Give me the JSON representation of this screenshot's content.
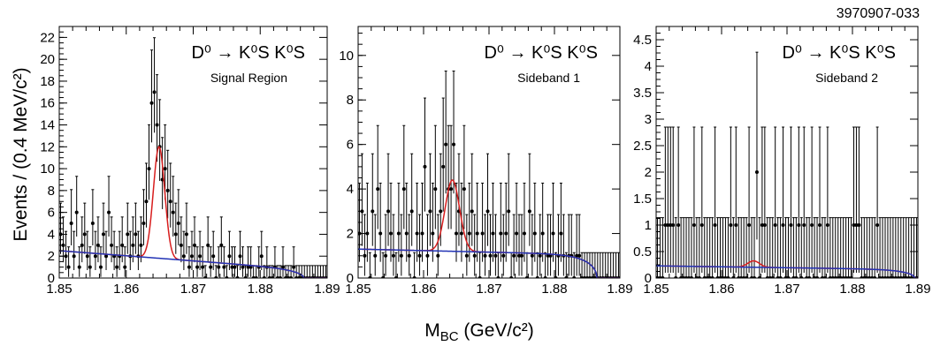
{
  "figure_id": "3970907-033",
  "shared_xlabel": "M_BC (GeV/c²)",
  "shared_ylabel": "Events / (0.4 MeV/c²)",
  "chart_data": [
    {
      "type": "scatter",
      "annotation_title": "D⁰ → K⁰S K⁰S",
      "annotation_subtitle": "Signal Region",
      "xlim": [
        1.85,
        1.89
      ],
      "ylim": [
        0,
        23
      ],
      "xticks": [
        1.85,
        1.86,
        1.87,
        1.88,
        1.89
      ],
      "yticks": [
        0,
        2,
        4,
        6,
        8,
        10,
        12,
        14,
        16,
        18,
        20,
        22
      ],
      "x": [
        1.8502,
        1.8506,
        1.851,
        1.8514,
        1.8518,
        1.8522,
        1.8526,
        1.853,
        1.8534,
        1.8538,
        1.8542,
        1.8546,
        1.855,
        1.8554,
        1.8558,
        1.8562,
        1.8566,
        1.857,
        1.8574,
        1.8578,
        1.8582,
        1.8586,
        1.859,
        1.8594,
        1.8598,
        1.8602,
        1.8606,
        1.861,
        1.8614,
        1.8618,
        1.8622,
        1.8626,
        1.863,
        1.8634,
        1.8638,
        1.8642,
        1.8646,
        1.865,
        1.8654,
        1.8658,
        1.8662,
        1.8666,
        1.867,
        1.8674,
        1.8678,
        1.8682,
        1.8686,
        1.869,
        1.8694,
        1.8698,
        1.8702,
        1.8706,
        1.871,
        1.8714,
        1.8718,
        1.8722,
        1.8726,
        1.873,
        1.8734,
        1.8738,
        1.8742,
        1.8746,
        1.875,
        1.8754,
        1.8758,
        1.8762,
        1.8766,
        1.877,
        1.8774,
        1.8778,
        1.8782,
        1.8786,
        1.879,
        1.8794,
        1.8798,
        1.8802,
        1.8806,
        1.881,
        1.8814,
        1.8818,
        1.8822,
        1.8826,
        1.883,
        1.8834,
        1.8838,
        1.8842,
        1.8846,
        1.885,
        1.8854,
        1.8858,
        1.8862,
        1.8866,
        1.887,
        1.8874,
        1.8878,
        1.8882,
        1.8886,
        1.889,
        1.8894,
        1.8898
      ],
      "y": [
        4,
        3,
        2,
        1,
        5,
        2,
        6,
        1,
        3,
        4,
        2,
        1,
        5,
        2,
        3,
        1,
        4,
        2,
        6,
        3,
        2,
        1,
        2,
        3,
        1,
        4,
        2,
        3,
        4,
        2,
        3,
        5,
        7,
        10,
        16,
        17,
        14,
        12,
        9,
        10,
        8,
        7,
        6,
        4,
        5,
        3,
        2,
        4,
        1,
        2,
        3,
        1,
        2,
        1,
        0,
        3,
        1,
        2,
        0,
        1,
        3,
        1,
        0,
        2,
        1,
        1,
        0,
        2,
        1,
        0,
        1,
        1,
        0,
        0,
        1,
        2,
        0,
        1,
        0,
        0,
        1,
        0,
        0,
        1,
        0,
        0,
        0,
        1,
        0,
        0,
        0,
        0,
        0,
        0,
        0,
        0,
        0,
        0,
        0,
        0
      ],
      "signal_fit": {
        "mean": 1.8649,
        "sigma": 0.00085,
        "amplitude": 10.2
      },
      "background_fit": {
        "start": 2.5,
        "end_slope_point": 0.8,
        "endpoint": 1.8865
      }
    },
    {
      "type": "scatter",
      "annotation_title": "D⁰ → K⁰S K⁰S",
      "annotation_subtitle": "Sideband 1",
      "xlim": [
        1.85,
        1.89
      ],
      "ylim": [
        0,
        11.3
      ],
      "xticks": [
        1.85,
        1.86,
        1.87,
        1.88,
        1.89
      ],
      "yticks": [
        0,
        2,
        4,
        6,
        8,
        10
      ],
      "x": [
        1.8502,
        1.8506,
        1.851,
        1.8514,
        1.8518,
        1.8522,
        1.8526,
        1.853,
        1.8534,
        1.8538,
        1.8542,
        1.8546,
        1.855,
        1.8554,
        1.8558,
        1.8562,
        1.8566,
        1.857,
        1.8574,
        1.8578,
        1.8582,
        1.8586,
        1.859,
        1.8594,
        1.8598,
        1.8602,
        1.8606,
        1.861,
        1.8614,
        1.8618,
        1.8622,
        1.8626,
        1.863,
        1.8634,
        1.8638,
        1.8642,
        1.8646,
        1.865,
        1.8654,
        1.8658,
        1.8662,
        1.8666,
        1.867,
        1.8674,
        1.8678,
        1.8682,
        1.8686,
        1.869,
        1.8694,
        1.8698,
        1.8702,
        1.8706,
        1.871,
        1.8714,
        1.8718,
        1.8722,
        1.8726,
        1.873,
        1.8734,
        1.8738,
        1.8742,
        1.8746,
        1.875,
        1.8754,
        1.8758,
        1.8762,
        1.8766,
        1.877,
        1.8774,
        1.8778,
        1.8782,
        1.8786,
        1.879,
        1.8794,
        1.8798,
        1.8802,
        1.8806,
        1.881,
        1.8814,
        1.8818,
        1.8822,
        1.8826,
        1.883,
        1.8834,
        1.8838,
        1.8842,
        1.8846,
        1.885,
        1.8854,
        1.8858,
        1.8862,
        1.8866,
        1.887,
        1.8874,
        1.8878,
        1.8882,
        1.8886,
        1.889,
        1.8894,
        1.8898
      ],
      "y": [
        2,
        3,
        1,
        2,
        0,
        3,
        1,
        4,
        2,
        0,
        1,
        3,
        2,
        1,
        0,
        2,
        1,
        4,
        2,
        1,
        3,
        0,
        2,
        1,
        2,
        5,
        1,
        3,
        2,
        4,
        1,
        3,
        5,
        6,
        4,
        4,
        6,
        2,
        3,
        2,
        4,
        1,
        2,
        3,
        1,
        2,
        0,
        2,
        1,
        3,
        1,
        2,
        1,
        0,
        2,
        1,
        2,
        3,
        0,
        1,
        2,
        1,
        1,
        2,
        0,
        3,
        1,
        2,
        0,
        1,
        2,
        0,
        1,
        1,
        2,
        0,
        1,
        2,
        1,
        0,
        1,
        1,
        0,
        1,
        1,
        0,
        0,
        0,
        0,
        0,
        0,
        0,
        0,
        0,
        0,
        0,
        0,
        0,
        0,
        0
      ],
      "signal_fit": {
        "mean": 1.8644,
        "sigma": 0.0011,
        "amplitude": 3.2
      },
      "background_fit": {
        "start": 1.3,
        "end_slope_point": 1.05,
        "endpoint": 1.8865
      }
    },
    {
      "type": "scatter",
      "annotation_title": "D⁰ → K⁰S K⁰S",
      "annotation_subtitle": "Sideband 2",
      "xlim": [
        1.85,
        1.89
      ],
      "ylim": [
        0,
        4.75
      ],
      "xticks": [
        1.85,
        1.86,
        1.87,
        1.88,
        1.89
      ],
      "yticks": [
        0,
        0.5,
        1,
        1.5,
        2,
        2.5,
        3,
        3.5,
        4,
        4.5
      ],
      "x": [
        1.8502,
        1.8506,
        1.851,
        1.8514,
        1.8518,
        1.8522,
        1.8526,
        1.853,
        1.8534,
        1.8538,
        1.8542,
        1.8546,
        1.855,
        1.8554,
        1.8558,
        1.8562,
        1.8566,
        1.857,
        1.8574,
        1.8578,
        1.8582,
        1.8586,
        1.859,
        1.8594,
        1.8598,
        1.8602,
        1.8606,
        1.861,
        1.8614,
        1.8618,
        1.8622,
        1.8626,
        1.863,
        1.8634,
        1.8638,
        1.8642,
        1.8646,
        1.865,
        1.8654,
        1.8658,
        1.8662,
        1.8666,
        1.867,
        1.8674,
        1.8678,
        1.8682,
        1.8686,
        1.869,
        1.8694,
        1.8698,
        1.8702,
        1.8706,
        1.871,
        1.8714,
        1.8718,
        1.8722,
        1.8726,
        1.873,
        1.8734,
        1.8738,
        1.8742,
        1.8746,
        1.875,
        1.8754,
        1.8758,
        1.8762,
        1.8766,
        1.877,
        1.8774,
        1.8778,
        1.8782,
        1.8786,
        1.879,
        1.8794,
        1.8798,
        1.8802,
        1.8806,
        1.881,
        1.8814,
        1.8818,
        1.8822,
        1.8826,
        1.883,
        1.8834,
        1.8838,
        1.8842,
        1.8846,
        1.885,
        1.8854,
        1.8858,
        1.8862,
        1.8866,
        1.887,
        1.8874,
        1.8878,
        1.8882,
        1.8886,
        1.889,
        1.8894,
        1.8898
      ],
      "y": [
        0,
        0,
        0,
        1,
        1,
        1,
        1,
        0,
        1,
        0,
        0,
        0,
        0,
        0,
        1,
        0,
        0,
        1,
        0,
        0,
        0,
        0,
        1,
        0,
        0,
        0,
        0,
        0,
        1,
        0,
        1,
        0,
        0,
        0,
        0,
        1,
        0,
        0,
        2,
        0,
        1,
        1,
        0,
        0,
        0,
        1,
        0,
        0,
        1,
        0,
        0,
        1,
        0,
        0,
        1,
        0,
        1,
        0,
        0,
        1,
        0,
        0,
        1,
        0,
        0,
        1,
        0,
        0,
        0,
        0,
        0,
        0,
        0,
        0,
        0,
        1,
        1,
        1,
        0,
        0,
        0,
        0,
        0,
        0,
        1,
        0,
        0,
        0,
        0,
        0,
        0,
        0,
        0,
        0,
        0,
        0,
        0,
        0,
        0,
        0
      ],
      "signal_fit": {
        "mean": 1.8649,
        "sigma": 0.0009,
        "amplitude": 0.12
      },
      "background_fit": {
        "start": 0.23,
        "end_slope_point": 0.16,
        "endpoint": 1.8895
      }
    }
  ]
}
